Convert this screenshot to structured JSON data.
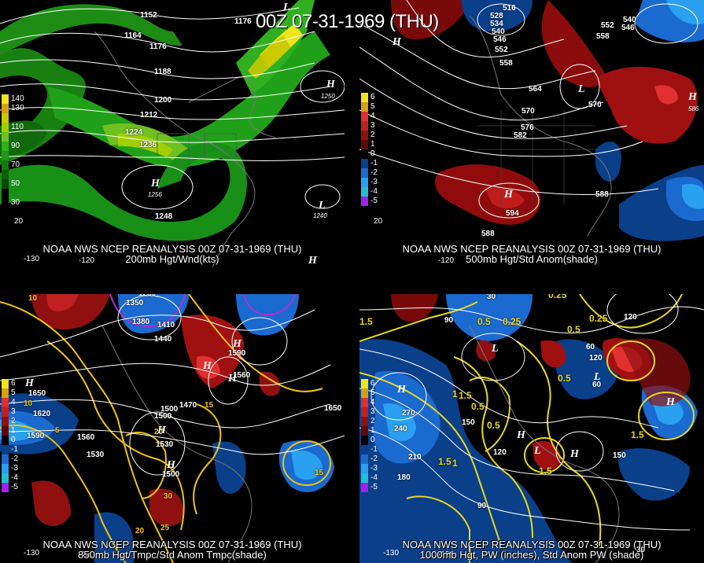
{
  "title": "00Z 07-31-1969 (THU)",
  "panels": [
    {
      "caption1": "NOAA NWS NCEP REANALYSIS 00Z 07-31-1969 (THU)",
      "caption2": "200mb Hgt/Wnd(kts)",
      "legend": [
        {
          "label": "140",
          "color": "#f1e41c"
        },
        {
          "label": "130",
          "color": "#d4a017"
        },
        {
          "label": "",
          "color": "#c8c800"
        },
        {
          "label": "110",
          "color": "#a0d000"
        },
        {
          "label": "",
          "color": "#70c020"
        },
        {
          "label": "90",
          "color": "#30b020"
        },
        {
          "label": "",
          "color": "#209818"
        },
        {
          "label": "70",
          "color": "#127a10"
        },
        {
          "label": "",
          "color": "#0c6008"
        },
        {
          "label": "50",
          "color": "#084806"
        },
        {
          "label": "",
          "color": "#000000"
        },
        {
          "label": "30",
          "color": "#000000"
        }
      ],
      "contour_labels": [
        "1152",
        "1164",
        "1176",
        "1176",
        "1188",
        "1200",
        "1212",
        "1224",
        "1236",
        "1248",
        "1256",
        "1250",
        "1240"
      ],
      "highs_lows": [
        "H",
        "H",
        "L",
        "L",
        "H"
      ],
      "ticks": [
        "-130",
        "-120",
        "20"
      ]
    },
    {
      "caption1": "NOAA NWS NCEP REANALYSIS 00Z 07-31-1969 (THU)",
      "caption2": "500mb Hgt/Std Anom(shade)",
      "legend": [
        {
          "label": "6",
          "color": "#f1e41c"
        },
        {
          "label": "5",
          "color": "#d4a017"
        },
        {
          "label": "4",
          "color": "#e03030"
        },
        {
          "label": "3",
          "color": "#c02020"
        },
        {
          "label": "2",
          "color": "#901010"
        },
        {
          "label": "1",
          "color": "#600808"
        },
        {
          "label": "0",
          "color": "#000000"
        },
        {
          "label": "-1",
          "color": "#0a3f8a"
        },
        {
          "label": "-2",
          "color": "#1a6ad0"
        },
        {
          "label": "-3",
          "color": "#2aa0f0"
        },
        {
          "label": "-4",
          "color": "#20c0d0"
        },
        {
          "label": "-5",
          "color": "#a020f0"
        }
      ],
      "contour_labels": [
        "516",
        "528",
        "534",
        "540",
        "546",
        "552",
        "558",
        "564",
        "570",
        "570",
        "576",
        "582",
        "588",
        "588",
        "594",
        "540",
        "546",
        "552",
        "558",
        "586"
      ],
      "highs_lows": [
        "H",
        "L",
        "H",
        "H"
      ],
      "ticks": [
        "-120",
        "20"
      ]
    },
    {
      "caption1": "NOAA NWS NCEP REANALYSIS 00Z 07-31-1969 (THU)",
      "caption2": "850mb Hgt/Tmpc/Std Anom Tmpc(shade)",
      "legend": [
        {
          "label": "6",
          "color": "#f1e41c"
        },
        {
          "label": "5",
          "color": "#d4a017"
        },
        {
          "label": "4",
          "color": "#e03030"
        },
        {
          "label": "3",
          "color": "#c02020"
        },
        {
          "label": "2",
          "color": "#901010"
        },
        {
          "label": "1",
          "color": "#600808"
        },
        {
          "label": "0",
          "color": "#000000"
        },
        {
          "label": "-1",
          "color": "#0a3f8a"
        },
        {
          "label": "-2",
          "color": "#1a6ad0"
        },
        {
          "label": "-3",
          "color": "#2aa0f0"
        },
        {
          "label": "-4",
          "color": "#20c0d0"
        },
        {
          "label": "-5",
          "color": "#a020f0"
        }
      ],
      "contour_labels": [
        "1230",
        "1350",
        "1380",
        "1410",
        "1440",
        "1650",
        "1620",
        "1590",
        "1560",
        "1530",
        "1500",
        "1470",
        "1500",
        "1530",
        "1500",
        "1650",
        "1560",
        "1590",
        "10",
        "15",
        "5",
        "20",
        "30",
        "25",
        "20",
        "10",
        "15"
      ],
      "highs_lows": [
        "H",
        "H",
        "H",
        "H",
        "H",
        "H"
      ],
      "ticks": [
        "-130",
        "-120"
      ]
    },
    {
      "caption1": "NOAA NWS NCEP REANALYSIS 00Z 07-31-1969 (THU)",
      "caption2": "1000mb Hgt, PW (inches), Std Anom PW (shade)",
      "legend": [
        {
          "label": "6",
          "color": "#f1e41c"
        },
        {
          "label": "5",
          "color": "#d4a017"
        },
        {
          "label": "4",
          "color": "#e03030"
        },
        {
          "label": "3",
          "color": "#c02020"
        },
        {
          "label": "2",
          "color": "#901010"
        },
        {
          "label": "1",
          "color": "#600808"
        },
        {
          "label": "0",
          "color": "#000000"
        },
        {
          "label": "-1",
          "color": "#0a3f8a"
        },
        {
          "label": "-2",
          "color": "#1a6ad0"
        },
        {
          "label": "-3",
          "color": "#2aa0f0"
        },
        {
          "label": "-4",
          "color": "#20c0d0"
        },
        {
          "label": "-5",
          "color": "#a020f0"
        }
      ],
      "contour_labels": [
        "30",
        "0.25",
        "90",
        "0.5",
        "0.25",
        "120",
        "1.5",
        "0.5",
        "0.25",
        "60",
        "1.5",
        "120",
        "60",
        "270",
        "240",
        "210",
        "180",
        "150",
        "0.5",
        "1",
        "1.5",
        "0.5",
        "1.5",
        "120",
        "90",
        "150",
        "0.5",
        "1",
        "1.5",
        "30"
      ],
      "highs_lows": [
        "L",
        "H",
        "L",
        "H",
        "L",
        "H",
        "H"
      ],
      "ticks": [
        "-130",
        "-120"
      ]
    }
  ]
}
